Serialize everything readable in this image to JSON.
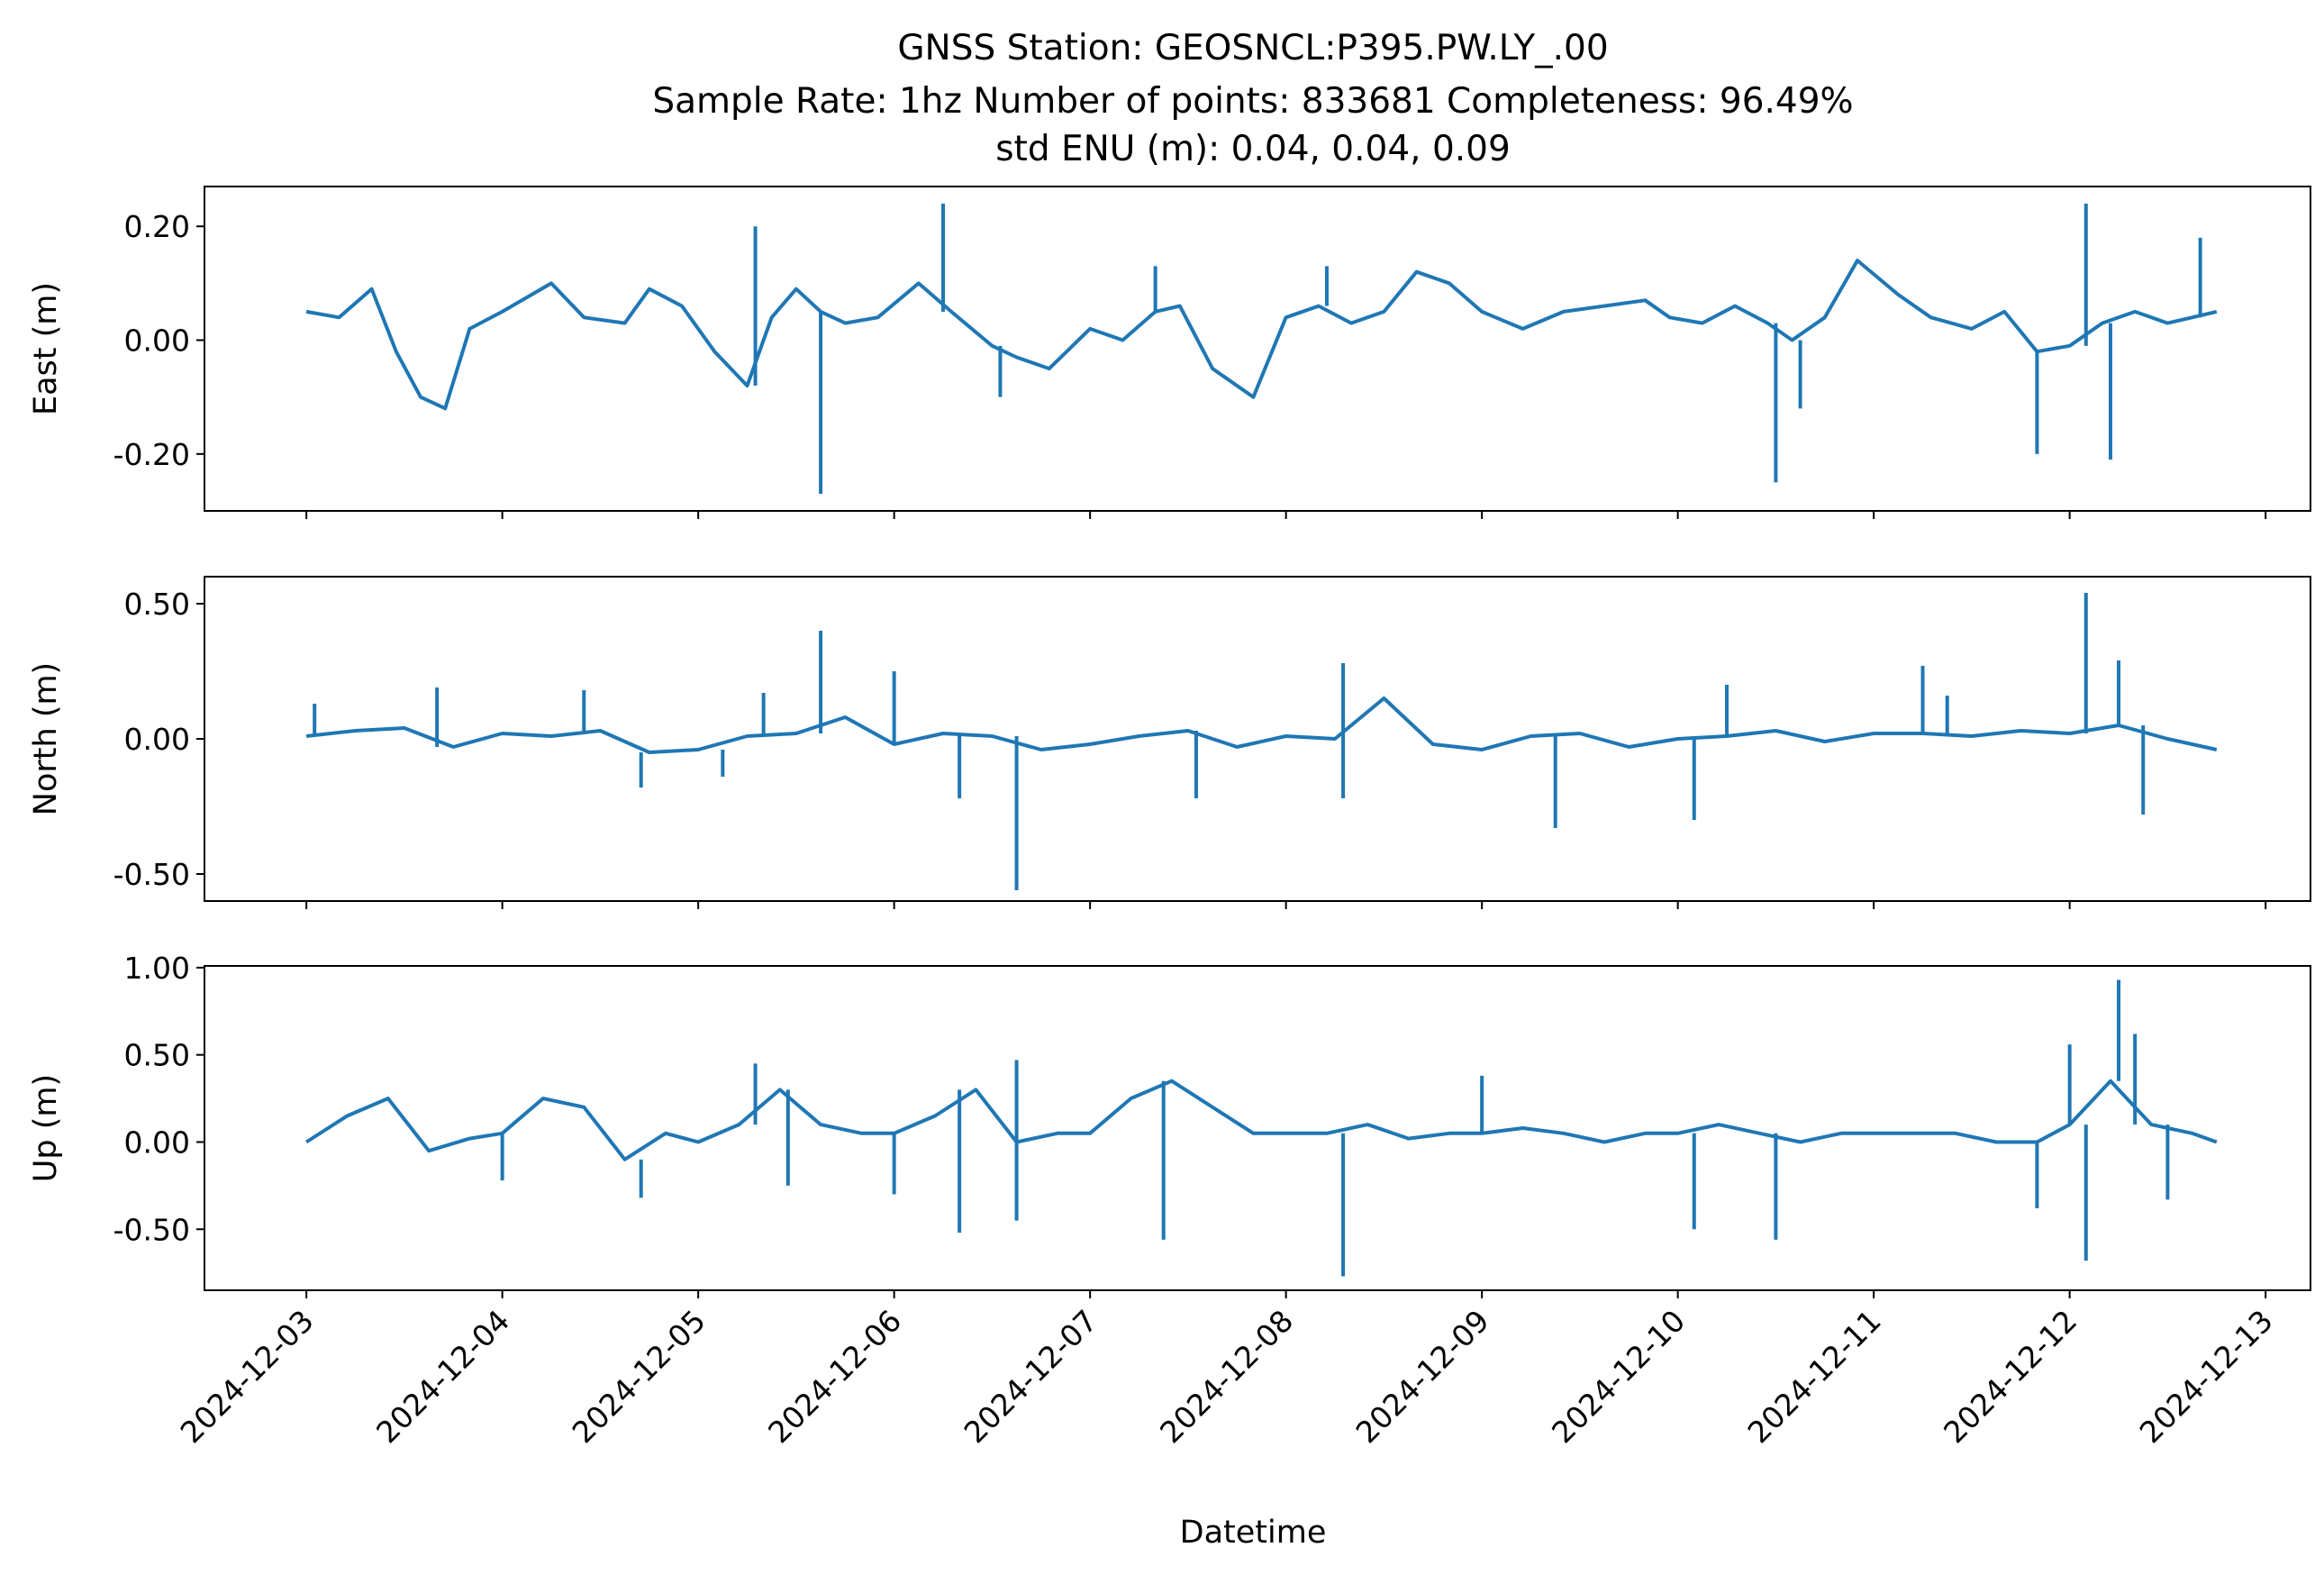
{
  "figure": {
    "title_lines": [
      "GNSS Station: GEOSNCL:P395.PW.LY_.00",
      "Sample Rate: 1hz   Number of points: 833681    Completeness:  96.49%",
      "std ENU (m):  0.04, 0.04, 0.09"
    ],
    "xlabel": "Datetime",
    "line_color": "#1f77b4"
  },
  "chart_data": [
    {
      "type": "line",
      "name": "East",
      "ylabel": "East (m)",
      "xlim": [
        "2024-12-02T11:31",
        "2024-12-13T05:30"
      ],
      "ylim": [
        -0.3,
        0.27
      ],
      "yticks": [
        0.2,
        0.0,
        -0.2
      ],
      "ytick_labels": [
        "0.20",
        "0.00",
        "-0.20"
      ],
      "xticks": [],
      "xtick_labels": [],
      "x": [
        "2024-12-03T00:00",
        "2024-12-03T04:00",
        "2024-12-03T08:00",
        "2024-12-03T11:00",
        "2024-12-03T14:00",
        "2024-12-03T17:00",
        "2024-12-03T20:00",
        "2024-12-04T00:00",
        "2024-12-04T06:00",
        "2024-12-04T10:00",
        "2024-12-04T15:00",
        "2024-12-04T18:00",
        "2024-12-04T22:00",
        "2024-12-05T02:00",
        "2024-12-05T06:00",
        "2024-12-05T09:00",
        "2024-12-05T12:00",
        "2024-12-05T15:00",
        "2024-12-05T18:00",
        "2024-12-05T22:00",
        "2024-12-06T03:00",
        "2024-12-06T07:00",
        "2024-12-06T12:00",
        "2024-12-06T15:00",
        "2024-12-06T19:00",
        "2024-12-07T00:00",
        "2024-12-07T04:00",
        "2024-12-07T08:00",
        "2024-12-07T11:00",
        "2024-12-07T15:00",
        "2024-12-07T20:00",
        "2024-12-08T00:00",
        "2024-12-08T04:00",
        "2024-12-08T08:00",
        "2024-12-08T12:00",
        "2024-12-08T16:00",
        "2024-12-08T20:00",
        "2024-12-09T00:00",
        "2024-12-09T05:00",
        "2024-12-09T10:00",
        "2024-12-09T15:00",
        "2024-12-09T20:00",
        "2024-12-09T23:00",
        "2024-12-10T03:00",
        "2024-12-10T07:00",
        "2024-12-10T11:00",
        "2024-12-10T14:00",
        "2024-12-10T18:00",
        "2024-12-10T22:00",
        "2024-12-11T03:00",
        "2024-12-11T07:00",
        "2024-12-11T12:00",
        "2024-12-11T16:00",
        "2024-12-11T20:00",
        "2024-12-12T00:00",
        "2024-12-12T04:00",
        "2024-12-12T08:00",
        "2024-12-12T12:00",
        "2024-12-12T15:00",
        "2024-12-12T18:00"
      ],
      "y": [
        0.05,
        0.04,
        0.09,
        -0.02,
        -0.1,
        -0.12,
        0.02,
        0.05,
        0.1,
        0.04,
        0.03,
        0.09,
        0.06,
        -0.02,
        -0.08,
        0.04,
        0.09,
        0.05,
        0.03,
        0.04,
        0.1,
        0.05,
        -0.01,
        -0.03,
        -0.05,
        0.02,
        0.0,
        0.05,
        0.06,
        -0.05,
        -0.1,
        0.04,
        0.06,
        0.03,
        0.05,
        0.12,
        0.1,
        0.05,
        0.02,
        0.05,
        0.06,
        0.07,
        0.04,
        0.03,
        0.06,
        0.03,
        0.0,
        0.04,
        0.14,
        0.08,
        0.04,
        0.02,
        0.05,
        -0.02,
        -0.01,
        0.03,
        0.05,
        0.03,
        0.04,
        0.05
      ],
      "spikes": [
        {
          "x": "2024-12-05T07:00",
          "y": 0.2
        },
        {
          "x": "2024-12-05T15:00",
          "y": -0.27
        },
        {
          "x": "2024-12-06T06:00",
          "y": 0.24
        },
        {
          "x": "2024-12-06T13:00",
          "y": -0.1
        },
        {
          "x": "2024-12-07T08:00",
          "y": 0.13
        },
        {
          "x": "2024-12-08T05:00",
          "y": 0.13
        },
        {
          "x": "2024-12-10T12:00",
          "y": -0.25
        },
        {
          "x": "2024-12-10T15:00",
          "y": -0.12
        },
        {
          "x": "2024-12-11T20:00",
          "y": -0.2
        },
        {
          "x": "2024-12-12T02:00",
          "y": 0.24
        },
        {
          "x": "2024-12-12T05:00",
          "y": -0.21
        },
        {
          "x": "2024-12-12T16:00",
          "y": 0.18
        }
      ]
    },
    {
      "type": "line",
      "name": "North",
      "ylabel": "North (m)",
      "xlim": [
        "2024-12-02T11:31",
        "2024-12-13T05:30"
      ],
      "ylim": [
        -0.6,
        0.6
      ],
      "yticks": [
        0.5,
        0.0,
        -0.5
      ],
      "ytick_labels": [
        "0.50",
        "0.00",
        "-0.50"
      ],
      "xticks": [],
      "xtick_labels": [],
      "x": [
        "2024-12-03T00:00",
        "2024-12-03T06:00",
        "2024-12-03T12:00",
        "2024-12-03T18:00",
        "2024-12-04T00:00",
        "2024-12-04T06:00",
        "2024-12-04T12:00",
        "2024-12-04T18:00",
        "2024-12-05T00:00",
        "2024-12-05T06:00",
        "2024-12-05T12:00",
        "2024-12-05T18:00",
        "2024-12-06T00:00",
        "2024-12-06T06:00",
        "2024-12-06T12:00",
        "2024-12-06T18:00",
        "2024-12-07T00:00",
        "2024-12-07T06:00",
        "2024-12-07T12:00",
        "2024-12-07T18:00",
        "2024-12-08T00:00",
        "2024-12-08T06:00",
        "2024-12-08T12:00",
        "2024-12-08T18:00",
        "2024-12-09T00:00",
        "2024-12-09T06:00",
        "2024-12-09T12:00",
        "2024-12-09T18:00",
        "2024-12-10T00:00",
        "2024-12-10T06:00",
        "2024-12-10T12:00",
        "2024-12-10T18:00",
        "2024-12-11T00:00",
        "2024-12-11T06:00",
        "2024-12-11T12:00",
        "2024-12-11T18:00",
        "2024-12-12T00:00",
        "2024-12-12T06:00",
        "2024-12-12T12:00",
        "2024-12-12T18:00"
      ],
      "y": [
        0.01,
        0.03,
        0.04,
        -0.03,
        0.02,
        0.01,
        0.03,
        -0.05,
        -0.04,
        0.01,
        0.02,
        0.08,
        -0.02,
        0.02,
        0.01,
        -0.04,
        -0.02,
        0.01,
        0.03,
        -0.03,
        0.01,
        0.0,
        0.15,
        -0.02,
        -0.04,
        0.01,
        0.02,
        -0.03,
        0.0,
        0.01,
        0.03,
        -0.01,
        0.02,
        0.02,
        0.01,
        0.03,
        0.02,
        0.05,
        0.0,
        -0.04
      ],
      "spikes": [
        {
          "x": "2024-12-03T01:00",
          "y": 0.13
        },
        {
          "x": "2024-12-03T16:00",
          "y": 0.19
        },
        {
          "x": "2024-12-04T10:00",
          "y": 0.18
        },
        {
          "x": "2024-12-04T17:00",
          "y": -0.18
        },
        {
          "x": "2024-12-05T03:00",
          "y": -0.14
        },
        {
          "x": "2024-12-05T08:00",
          "y": 0.17
        },
        {
          "x": "2024-12-05T15:00",
          "y": 0.4
        },
        {
          "x": "2024-12-06T00:00",
          "y": 0.25
        },
        {
          "x": "2024-12-06T08:00",
          "y": -0.22
        },
        {
          "x": "2024-12-06T15:00",
          "y": -0.56
        },
        {
          "x": "2024-12-07T13:00",
          "y": -0.22
        },
        {
          "x": "2024-12-08T07:00",
          "y": 0.28
        },
        {
          "x": "2024-12-08T07:00",
          "y": -0.22
        },
        {
          "x": "2024-12-09T09:00",
          "y": -0.33
        },
        {
          "x": "2024-12-10T02:00",
          "y": -0.3
        },
        {
          "x": "2024-12-10T06:00",
          "y": 0.2
        },
        {
          "x": "2024-12-11T06:00",
          "y": 0.27
        },
        {
          "x": "2024-12-11T09:00",
          "y": 0.16
        },
        {
          "x": "2024-12-12T02:00",
          "y": 0.54
        },
        {
          "x": "2024-12-12T06:00",
          "y": 0.29
        },
        {
          "x": "2024-12-12T09:00",
          "y": -0.28
        }
      ]
    },
    {
      "type": "line",
      "name": "Up",
      "ylabel": "Up (m)",
      "xlim": [
        "2024-12-02T11:31",
        "2024-12-13T05:30"
      ],
      "ylim": [
        -0.85,
        1.01
      ],
      "yticks": [
        1.0,
        0.5,
        0.0,
        -0.5
      ],
      "ytick_labels": [
        "1.00",
        "0.50",
        "0.00",
        "-0.50"
      ],
      "xticks": [
        "2024-12-03",
        "2024-12-04",
        "2024-12-05",
        "2024-12-06",
        "2024-12-07",
        "2024-12-08",
        "2024-12-09",
        "2024-12-10",
        "2024-12-11",
        "2024-12-12",
        "2024-12-13"
      ],
      "xtick_labels": [
        "2024-12-03",
        "2024-12-04",
        "2024-12-05",
        "2024-12-06",
        "2024-12-07",
        "2024-12-08",
        "2024-12-09",
        "2024-12-10",
        "2024-12-11",
        "2024-12-12",
        "2024-12-13"
      ],
      "x": [
        "2024-12-03T00:00",
        "2024-12-03T05:00",
        "2024-12-03T10:00",
        "2024-12-03T15:00",
        "2024-12-03T20:00",
        "2024-12-04T00:00",
        "2024-12-04T05:00",
        "2024-12-04T10:00",
        "2024-12-04T15:00",
        "2024-12-04T20:00",
        "2024-12-05T00:00",
        "2024-12-05T05:00",
        "2024-12-05T10:00",
        "2024-12-05T15:00",
        "2024-12-05T20:00",
        "2024-12-06T00:00",
        "2024-12-06T05:00",
        "2024-12-06T10:00",
        "2024-12-06T15:00",
        "2024-12-06T20:00",
        "2024-12-07T00:00",
        "2024-12-07T05:00",
        "2024-12-07T10:00",
        "2024-12-07T15:00",
        "2024-12-07T20:00",
        "2024-12-08T00:00",
        "2024-12-08T05:00",
        "2024-12-08T10:00",
        "2024-12-08T15:00",
        "2024-12-08T20:00",
        "2024-12-09T00:00",
        "2024-12-09T05:00",
        "2024-12-09T10:00",
        "2024-12-09T15:00",
        "2024-12-09T20:00",
        "2024-12-10T00:00",
        "2024-12-10T05:00",
        "2024-12-10T10:00",
        "2024-12-10T15:00",
        "2024-12-10T20:00",
        "2024-12-11T00:00",
        "2024-12-11T05:00",
        "2024-12-11T10:00",
        "2024-12-11T15:00",
        "2024-12-11T20:00",
        "2024-12-12T00:00",
        "2024-12-12T05:00",
        "2024-12-12T10:00",
        "2024-12-12T15:00",
        "2024-12-12T18:00"
      ],
      "y": [
        0.0,
        0.15,
        0.25,
        -0.05,
        0.02,
        0.05,
        0.25,
        0.2,
        -0.1,
        0.05,
        0.0,
        0.1,
        0.3,
        0.1,
        0.05,
        0.05,
        0.15,
        0.3,
        0.0,
        0.05,
        0.05,
        0.25,
        0.35,
        0.2,
        0.05,
        0.05,
        0.05,
        0.1,
        0.02,
        0.05,
        0.05,
        0.08,
        0.05,
        0.0,
        0.05,
        0.05,
        0.1,
        0.05,
        0.0,
        0.05,
        0.05,
        0.05,
        0.05,
        0.0,
        0.0,
        0.1,
        0.35,
        0.1,
        0.05,
        0.0
      ],
      "spikes": [
        {
          "x": "2024-12-04T00:00",
          "y": -0.22
        },
        {
          "x": "2024-12-04T17:00",
          "y": -0.32
        },
        {
          "x": "2024-12-05T07:00",
          "y": 0.45
        },
        {
          "x": "2024-12-05T11:00",
          "y": -0.25
        },
        {
          "x": "2024-12-06T00:00",
          "y": -0.3
        },
        {
          "x": "2024-12-06T08:00",
          "y": -0.52
        },
        {
          "x": "2024-12-06T15:00",
          "y": 0.47
        },
        {
          "x": "2024-12-06T15:00",
          "y": -0.45
        },
        {
          "x": "2024-12-07T09:00",
          "y": -0.56
        },
        {
          "x": "2024-12-08T07:00",
          "y": -0.77
        },
        {
          "x": "2024-12-09T00:00",
          "y": 0.38
        },
        {
          "x": "2024-12-10T02:00",
          "y": -0.5
        },
        {
          "x": "2024-12-10T12:00",
          "y": -0.56
        },
        {
          "x": "2024-12-11T20:00",
          "y": -0.38
        },
        {
          "x": "2024-12-12T00:00",
          "y": 0.56
        },
        {
          "x": "2024-12-12T02:00",
          "y": -0.68
        },
        {
          "x": "2024-12-12T06:00",
          "y": 0.93
        },
        {
          "x": "2024-12-12T08:00",
          "y": 0.62
        },
        {
          "x": "2024-12-12T12:00",
          "y": -0.33
        }
      ]
    }
  ]
}
